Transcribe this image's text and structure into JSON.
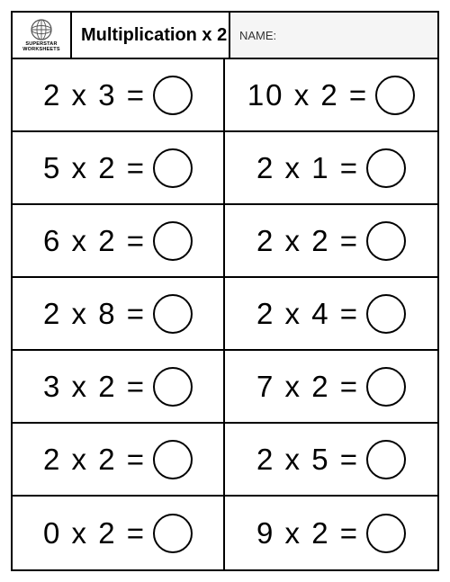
{
  "header": {
    "logo_line1": "SUPERSTAR",
    "logo_line2": "WORKSHEETS",
    "title": "Multiplication x 2",
    "name_label": "NAME:"
  },
  "style": {
    "border_color": "#000000",
    "text_color": "#000000",
    "background_color": "#ffffff",
    "name_bg": "#f5f5f5",
    "eq_fontsize": 33,
    "circle_diameter": 44,
    "circle_border_width": 2.5,
    "grid": {
      "rows": 7,
      "cols": 2
    }
  },
  "problems": [
    {
      "a": 2,
      "op": "x",
      "b": 3,
      "eq": "="
    },
    {
      "a": 10,
      "op": "x",
      "b": 2,
      "eq": "="
    },
    {
      "a": 5,
      "op": "x",
      "b": 2,
      "eq": "="
    },
    {
      "a": 2,
      "op": "x",
      "b": 1,
      "eq": "="
    },
    {
      "a": 6,
      "op": "x",
      "b": 2,
      "eq": "="
    },
    {
      "a": 2,
      "op": "x",
      "b": 2,
      "eq": "="
    },
    {
      "a": 2,
      "op": "x",
      "b": 8,
      "eq": "="
    },
    {
      "a": 2,
      "op": "x",
      "b": 4,
      "eq": "="
    },
    {
      "a": 3,
      "op": "x",
      "b": 2,
      "eq": "="
    },
    {
      "a": 7,
      "op": "x",
      "b": 2,
      "eq": "="
    },
    {
      "a": 2,
      "op": "x",
      "b": 2,
      "eq": "="
    },
    {
      "a": 2,
      "op": "x",
      "b": 5,
      "eq": "="
    },
    {
      "a": 0,
      "op": "x",
      "b": 2,
      "eq": "="
    },
    {
      "a": 9,
      "op": "x",
      "b": 2,
      "eq": "="
    }
  ]
}
